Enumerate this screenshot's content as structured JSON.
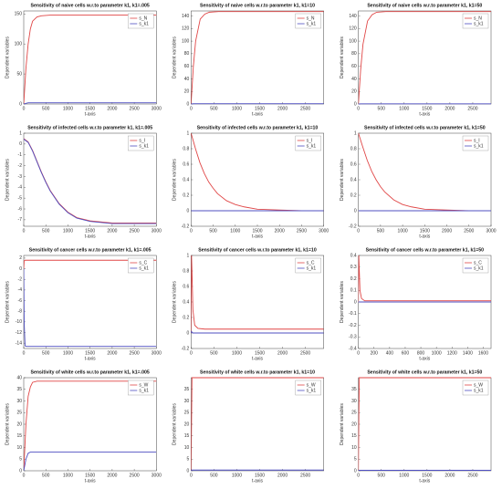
{
  "chart_data": [
    {
      "type": "line",
      "title": "Sensitivity of naive cells w.r.to parameter k1, k1=.005",
      "xlabel": "t-axis",
      "ylabel": "Dependent variables",
      "x": [
        0,
        50,
        100,
        150,
        200,
        300,
        400,
        600,
        1000,
        2000,
        3000
      ],
      "series": [
        {
          "name": "s_N",
          "color": "#e04646",
          "values": [
            0,
            60,
            100,
            125,
            138,
            145,
            147,
            148,
            148,
            148,
            148
          ]
        },
        {
          "name": "s_k1",
          "color": "#4f4fc2",
          "values": [
            0,
            1,
            2,
            2,
            2,
            2,
            2,
            2,
            2,
            2,
            2
          ]
        }
      ],
      "xlim": [
        0,
        3000
      ],
      "xticks": [
        0,
        500,
        1000,
        1500,
        2000,
        2500,
        3000
      ],
      "ylim": [
        0,
        155
      ],
      "yticks": [
        0,
        50,
        100,
        150
      ],
      "legend": "upper right"
    },
    {
      "type": "line",
      "title": "Sensitivity of naive cells w.r.to parameter k1, k1=10",
      "xlabel": "t-axis",
      "ylabel": "Dependent variables",
      "x": [
        0,
        50,
        100,
        200,
        300,
        400,
        600,
        1000,
        2000,
        2900
      ],
      "series": [
        {
          "name": "s_N",
          "color": "#e04646",
          "values": [
            0,
            60,
            100,
            135,
            143,
            146,
            147,
            147,
            147,
            147
          ]
        },
        {
          "name": "s_k1",
          "color": "#4f4fc2",
          "values": [
            0,
            0.5,
            0.5,
            0.5,
            0.5,
            0.5,
            0.5,
            0.5,
            0.5,
            0.5
          ]
        }
      ],
      "xlim": [
        0,
        2900
      ],
      "xticks": [
        0,
        500,
        1000,
        1500,
        2000,
        2500
      ],
      "ylim": [
        0,
        148
      ],
      "yticks": [
        0,
        20,
        40,
        60,
        80,
        100,
        120,
        140
      ],
      "legend": "upper right"
    },
    {
      "type": "line",
      "title": "Sensitivity of naive cells w.r.to parameter k1, k1=50",
      "xlabel": "t-axis",
      "ylabel": "Dependent variables",
      "x": [
        0,
        50,
        100,
        200,
        300,
        400,
        600,
        1000,
        2000,
        2900
      ],
      "series": [
        {
          "name": "s_N",
          "color": "#e04646",
          "values": [
            0,
            55,
            95,
            132,
            142,
            146,
            147,
            147,
            147,
            147
          ]
        },
        {
          "name": "s_k1",
          "color": "#4f4fc2",
          "values": [
            0,
            0.3,
            0.3,
            0.3,
            0.3,
            0.3,
            0.3,
            0.3,
            0.3,
            0.3
          ]
        }
      ],
      "xlim": [
        0,
        2900
      ],
      "xticks": [
        0,
        500,
        1000,
        1500,
        2000,
        2500
      ],
      "ylim": [
        0,
        148
      ],
      "yticks": [
        0,
        20,
        40,
        60,
        80,
        100,
        120,
        140
      ],
      "legend": "upper right"
    },
    {
      "type": "line",
      "title": "Sensitivity of infected cells w.r.to parameter k1, k1=.005",
      "xlabel": "t-axis",
      "ylabel": "Dependent variables",
      "x": [
        0,
        100,
        200,
        300,
        400,
        500,
        600,
        800,
        1000,
        1200,
        1500,
        2000,
        2500,
        3000
      ],
      "series": [
        {
          "name": "s_I",
          "color": "#e04646",
          "values": [
            0.5,
            0.2,
            -0.6,
            -1.6,
            -2.6,
            -3.5,
            -4.3,
            -5.5,
            -6.3,
            -6.8,
            -7.1,
            -7.3,
            -7.3,
            -7.3
          ]
        },
        {
          "name": "s_k1",
          "color": "#4f4fc2",
          "values": [
            0.45,
            0.15,
            -0.65,
            -1.65,
            -2.65,
            -3.55,
            -4.35,
            -5.55,
            -6.35,
            -6.85,
            -7.15,
            -7.35,
            -7.35,
            -7.35
          ]
        }
      ],
      "xlim": [
        0,
        3000
      ],
      "xticks": [
        0,
        500,
        1000,
        1500,
        2000,
        2500,
        3000
      ],
      "ylim": [
        -7.6,
        1
      ],
      "yticks": [
        -7,
        -6,
        -5,
        -4,
        -3,
        -2,
        -1,
        0,
        1
      ],
      "legend": "upper right"
    },
    {
      "type": "line",
      "title": "Sensitivity of infected cells w.r.to parameter k1, k1=10",
      "xlabel": "t-axis",
      "ylabel": "Dependent variables",
      "x": [
        0,
        100,
        200,
        300,
        400,
        500,
        600,
        800,
        1000,
        1200,
        1500,
        2000,
        2500,
        3000
      ],
      "series": [
        {
          "name": "s_I",
          "color": "#e04646",
          "values": [
            1,
            0.8,
            0.62,
            0.48,
            0.37,
            0.29,
            0.22,
            0.13,
            0.08,
            0.05,
            0.02,
            0.01,
            0,
            0
          ]
        },
        {
          "name": "s_k1",
          "color": "#4f4fc2",
          "values": [
            0,
            0,
            0,
            0,
            0,
            0,
            0,
            0,
            0,
            0,
            0,
            0,
            0,
            0
          ]
        }
      ],
      "xlim": [
        0,
        3000
      ],
      "xticks": [
        0,
        500,
        1000,
        1500,
        2000,
        2500,
        3000
      ],
      "ylim": [
        -0.2,
        1
      ],
      "yticks": [
        -0.2,
        0,
        0.2,
        0.4,
        0.6,
        0.8,
        1
      ],
      "legend": "upper right"
    },
    {
      "type": "line",
      "title": "Sensitivity of infected cells w.r.to parameter k1, k1=50",
      "xlabel": "t-axis",
      "ylabel": "Dependent variables",
      "x": [
        0,
        100,
        200,
        300,
        400,
        500,
        600,
        800,
        1000,
        1200,
        1500,
        2000,
        2500,
        3000
      ],
      "series": [
        {
          "name": "s_I",
          "color": "#e04646",
          "values": [
            1,
            0.82,
            0.65,
            0.51,
            0.4,
            0.31,
            0.24,
            0.14,
            0.08,
            0.05,
            0.02,
            0.01,
            0,
            0
          ]
        },
        {
          "name": "s_k1",
          "color": "#4f4fc2",
          "values": [
            0,
            0,
            0,
            0,
            0,
            0,
            0,
            0,
            0,
            0,
            0,
            0,
            0,
            0
          ]
        }
      ],
      "xlim": [
        0,
        3000
      ],
      "xticks": [
        0,
        500,
        1000,
        1500,
        2000,
        2500,
        3000
      ],
      "ylim": [
        -0.2,
        1
      ],
      "yticks": [
        -0.2,
        0,
        0.2,
        0.4,
        0.6,
        0.8,
        1
      ],
      "legend": "upper right"
    },
    {
      "type": "line",
      "title": "Sensitivity of cancer cells w.r.to parameter k1, k1=.005",
      "xlabel": "t-axis",
      "ylabel": "Dependent variables",
      "x": [
        0,
        10,
        30,
        60,
        100,
        200,
        500,
        1000,
        2000,
        3000
      ],
      "series": [
        {
          "name": "s_C",
          "color": "#e04646",
          "values": [
            0,
            1.5,
            1.6,
            1.6,
            1.6,
            1.6,
            1.6,
            1.6,
            1.6,
            1.6
          ]
        },
        {
          "name": "s_k1",
          "color": "#4f4fc2",
          "values": [
            0,
            -10,
            -14.5,
            -14.6,
            -14.6,
            -14.6,
            -14.6,
            -14.6,
            -14.6,
            -14.6
          ]
        }
      ],
      "xlim": [
        0,
        3000
      ],
      "xticks": [
        0,
        500,
        1000,
        1500,
        2000,
        2500,
        3000
      ],
      "ylim": [
        -15,
        2.5
      ],
      "yticks": [
        -14,
        -12,
        -10,
        -8,
        -6,
        -4,
        -2,
        0,
        2
      ],
      "legend": "upper right"
    },
    {
      "type": "line",
      "title": "Sensitivity of cancer cells w.r.to parameter k1, k1=10",
      "xlabel": "t-axis",
      "ylabel": "Dependent variables",
      "x": [
        0,
        10,
        20,
        40,
        80,
        150,
        300,
        1000,
        2000,
        2900
      ],
      "series": [
        {
          "name": "s_C",
          "color": "#e04646",
          "values": [
            0,
            1,
            0.8,
            0.3,
            0.1,
            0.06,
            0.05,
            0.05,
            0.05,
            0.05
          ]
        },
        {
          "name": "s_k1",
          "color": "#4f4fc2",
          "values": [
            0,
            0.02,
            0.01,
            0,
            0,
            0,
            0,
            0,
            0,
            0
          ]
        }
      ],
      "xlim": [
        0,
        2900
      ],
      "xticks": [
        0,
        500,
        1000,
        1500,
        2000,
        2500
      ],
      "ylim": [
        -0.2,
        1
      ],
      "yticks": [
        -0.2,
        0,
        0.2,
        0.4,
        0.6,
        0.8,
        1
      ],
      "legend": "upper right"
    },
    {
      "type": "line",
      "title": "Sensitivity of cancer cells w.r.to parameter k1, k1=50",
      "xlabel": "t-axis",
      "ylabel": "Dependent variables",
      "x": [
        0,
        5,
        10,
        20,
        40,
        80,
        200,
        800,
        1700
      ],
      "series": [
        {
          "name": "s_C",
          "color": "#e04646",
          "values": [
            0,
            0.4,
            0.3,
            0.1,
            0.03,
            0.01,
            0.01,
            0.01,
            0.01
          ]
        },
        {
          "name": "s_k1",
          "color": "#4f4fc2",
          "values": [
            0,
            0,
            0,
            0,
            0,
            0,
            0,
            0,
            0
          ]
        }
      ],
      "xlim": [
        0,
        1700
      ],
      "xticks": [
        0,
        200,
        400,
        600,
        800,
        1000,
        1200,
        1400,
        1600
      ],
      "ylim": [
        -0.4,
        0.4
      ],
      "yticks": [
        -0.4,
        -0.3,
        -0.2,
        -0.1,
        0,
        0.1,
        0.2,
        0.3,
        0.4
      ],
      "legend": "upper right"
    },
    {
      "type": "line",
      "title": "Sensitivity of white cells w.r.to parameter k1, k1=.005",
      "xlabel": "t-axis",
      "ylabel": "Dependent variables",
      "x": [
        0,
        50,
        100,
        150,
        200,
        300,
        500,
        1000,
        2000,
        3000
      ],
      "series": [
        {
          "name": "s_W",
          "color": "#e04646",
          "values": [
            0,
            20,
            32,
            36,
            38,
            38.5,
            38.5,
            38.5,
            38.5,
            38.5
          ]
        },
        {
          "name": "s_k1",
          "color": "#4f4fc2",
          "values": [
            0,
            5,
            7.5,
            8,
            8,
            8,
            8,
            8,
            8,
            8
          ]
        }
      ],
      "xlim": [
        0,
        3000
      ],
      "xticks": [
        0,
        500,
        1000,
        1500,
        2000,
        2500,
        3000
      ],
      "ylim": [
        0,
        40
      ],
      "yticks": [
        0,
        5,
        10,
        15,
        20,
        25,
        30,
        35,
        40
      ],
      "legend": "upper right"
    },
    {
      "type": "line",
      "title": "Sensitivity of white cells w.r.to parameter k1, k1=10",
      "xlabel": "t-axis",
      "ylabel": "Dependent variables",
      "x": [
        0,
        10,
        20,
        40,
        100,
        1000,
        2900
      ],
      "series": [
        {
          "name": "s_W",
          "color": "#e04646",
          "values": [
            0,
            20,
            40,
            40,
            40,
            40,
            40
          ]
        },
        {
          "name": "s_k1",
          "color": "#4f4fc2",
          "values": [
            0,
            0.3,
            0.3,
            0.3,
            0.3,
            0.3,
            0.3
          ]
        }
      ],
      "xlim": [
        0,
        2900
      ],
      "xticks": [
        0,
        500,
        1000,
        1500,
        2000,
        2500
      ],
      "ylim": [
        0,
        40
      ],
      "yticks": [
        0,
        5,
        10,
        15,
        20,
        25,
        30,
        35
      ],
      "legend": "upper right"
    },
    {
      "type": "line",
      "title": "Sensitivity of white cells w.r.to parameter k1, k1=50",
      "xlabel": "t-axis",
      "ylabel": "Dependent variables",
      "x": [
        0,
        10,
        20,
        40,
        100,
        1000,
        2900
      ],
      "series": [
        {
          "name": "s_W",
          "color": "#e04646",
          "values": [
            0,
            25,
            40,
            40,
            40,
            40,
            40
          ]
        },
        {
          "name": "s_k1",
          "color": "#4f4fc2",
          "values": [
            0,
            0.2,
            0.2,
            0.2,
            0.2,
            0.2,
            0.2
          ]
        }
      ],
      "xlim": [
        0,
        2900
      ],
      "xticks": [
        0,
        500,
        1000,
        1500,
        2000,
        2500
      ],
      "ylim": [
        0,
        40
      ],
      "yticks": [
        0,
        5,
        10,
        15,
        20,
        25,
        30,
        35
      ],
      "legend": "upper right"
    }
  ]
}
